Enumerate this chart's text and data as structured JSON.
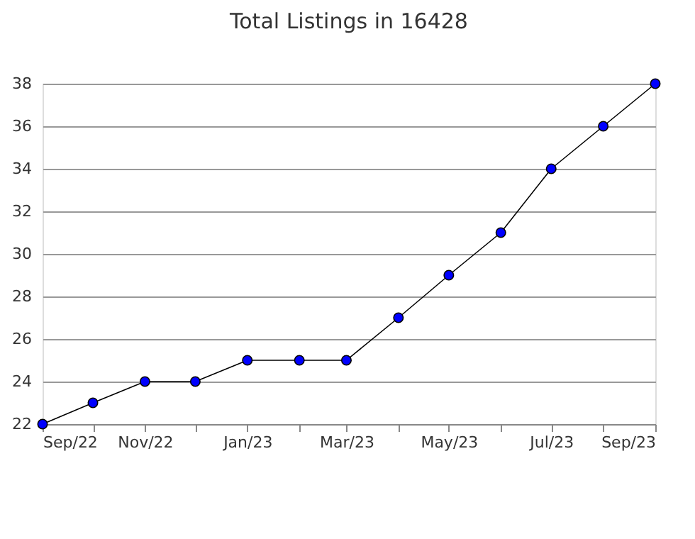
{
  "chart_data": {
    "type": "line",
    "title": "Total Listings in 16428",
    "x": [
      "2022-09",
      "2022-10",
      "2022-11",
      "2022-12",
      "2023-01",
      "2023-02",
      "2023-03",
      "2023-04",
      "2023-05",
      "2023-06",
      "2023-07",
      "2023-08",
      "2023-09"
    ],
    "series": [
      {
        "color": "#0000ff",
        "values": [
          22,
          23,
          24,
          24,
          25,
          25,
          25,
          27,
          29,
          31,
          34,
          36,
          38
        ]
      }
    ],
    "xlim": [
      "2022-09",
      "2023-09"
    ],
    "xticks": [
      {
        "value": "2022-09",
        "label": "Sep/22"
      },
      {
        "value": "2022-10",
        "label": null
      },
      {
        "value": "2022-11",
        "label": "Nov/22"
      },
      {
        "value": "2022-12",
        "label": null
      },
      {
        "value": "2023-01",
        "label": "Jan/23"
      },
      {
        "value": "2023-02",
        "label": null
      },
      {
        "value": "2023-03",
        "label": "Mar/23"
      },
      {
        "value": "2023-04",
        "label": null
      },
      {
        "value": "2023-05",
        "label": "May/23"
      },
      {
        "value": "2023-06",
        "label": null
      },
      {
        "value": "2023-07",
        "label": "Jul/23"
      },
      {
        "value": "2023-08",
        "label": null
      },
      {
        "value": "2023-09",
        "label": "Sep/23"
      }
    ],
    "ylim": [
      22,
      38
    ],
    "yticks": [
      22,
      24,
      26,
      28,
      30,
      32,
      34,
      36,
      38
    ],
    "grid": "y",
    "marker": "circle",
    "line_style": "solid"
  }
}
